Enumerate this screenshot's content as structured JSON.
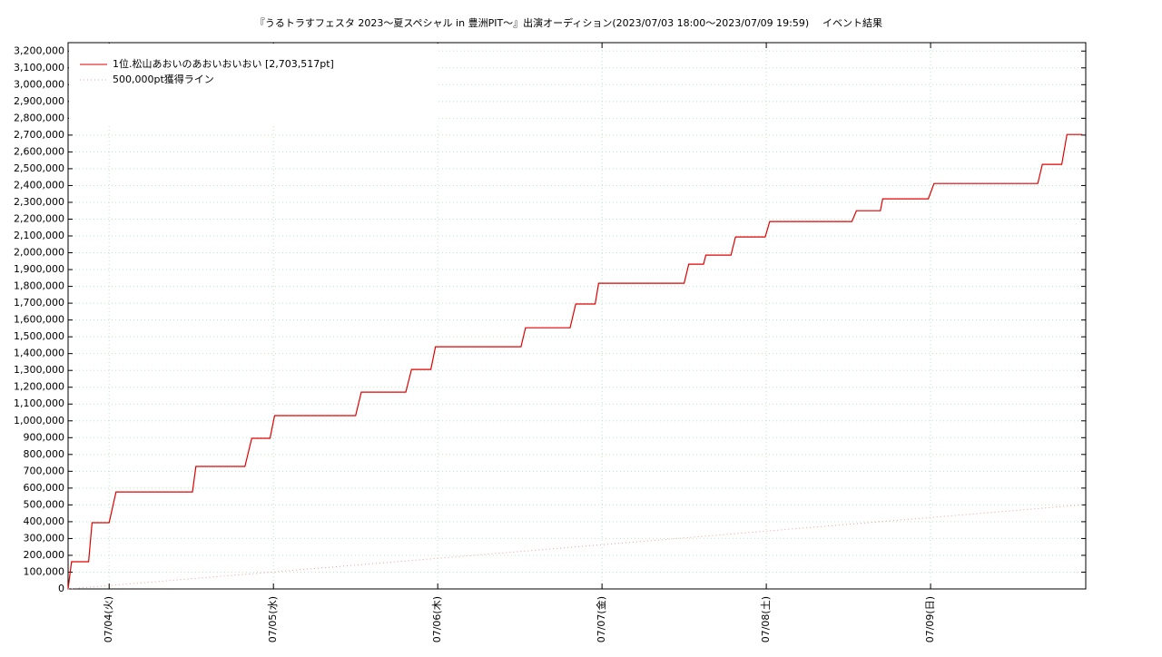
{
  "chart_data": {
    "type": "line",
    "title": "『うるトラすフェスタ 2023〜夏スペシャル in 豊洲PIT〜』出演オーディション(2023/07/03 18:00〜2023/07/09 19:59)",
    "subtitle": "イベント結果",
    "xlim": [
      "07/03 18:00",
      "07/09 22:40"
    ],
    "xticks": [
      {
        "value": "07/04 00:00",
        "label": "07/04(火)"
      },
      {
        "value": "07/05 00:00",
        "label": "07/05(水)"
      },
      {
        "value": "07/06 00:00",
        "label": "07/06(木)"
      },
      {
        "value": "07/07 00:00",
        "label": "07/07(金)"
      },
      {
        "value": "07/08 00:00",
        "label": "07/08(土)"
      },
      {
        "value": "07/09 00:00",
        "label": "07/09(日)"
      }
    ],
    "ylim": [
      0,
      3250000
    ],
    "yticks": [
      0,
      {
        "value": 100000,
        "label": "100,000"
      },
      {
        "value": 200000,
        "label": "200,000"
      },
      {
        "value": 300000,
        "label": "300,000"
      },
      {
        "value": 400000,
        "label": "400,000"
      },
      {
        "value": 500000,
        "label": "500,000"
      },
      {
        "value": 600000,
        "label": "600,000"
      },
      {
        "value": 700000,
        "label": "700,000"
      },
      {
        "value": 800000,
        "label": "800,000"
      },
      {
        "value": 900000,
        "label": "900,000"
      },
      {
        "value": 1000000,
        "label": "1,000,000"
      },
      {
        "value": 1100000,
        "label": "1,100,000"
      },
      {
        "value": 1200000,
        "label": "1,200,000"
      },
      {
        "value": 1300000,
        "label": "1,300,000"
      },
      {
        "value": 1400000,
        "label": "1,400,000"
      },
      {
        "value": 1500000,
        "label": "1,500,000"
      },
      {
        "value": 1600000,
        "label": "1,600,000"
      },
      {
        "value": 1700000,
        "label": "1,700,000"
      },
      {
        "value": 1800000,
        "label": "1,800,000"
      },
      {
        "value": 1900000,
        "label": "1,900,000"
      },
      {
        "value": 2000000,
        "label": "2,000,000"
      },
      {
        "value": 2100000,
        "label": "2,100,000"
      },
      {
        "value": 2200000,
        "label": "2,200,000"
      },
      {
        "value": 2300000,
        "label": "2,300,000"
      },
      {
        "value": 2400000,
        "label": "2,400,000"
      },
      {
        "value": 2500000,
        "label": "2,500,000"
      },
      {
        "value": 2600000,
        "label": "2,600,000"
      },
      {
        "value": 2700000,
        "label": "2,700,000"
      },
      {
        "value": 2800000,
        "label": "2,800,000"
      },
      {
        "value": 2900000,
        "label": "2,900,000"
      },
      {
        "value": 3000000,
        "label": "3,000,000"
      },
      {
        "value": 3100000,
        "label": "3,100,000"
      },
      {
        "value": 3200000,
        "label": "3,200,000"
      }
    ],
    "grid": true,
    "legend": "upper left",
    "series": [
      {
        "name": "1位.松山あおいのあおいおいおい [2,703,517pt]",
        "color": "#e00000",
        "dash": "solid",
        "x": [
          "07/03 18:00",
          "07/03 18:30",
          "07/03 21:00",
          "07/03 21:30",
          "07/04 00:00",
          "07/04 01:00",
          "07/04 12:10",
          "07/04 12:40",
          "07/04 19:50",
          "07/04 20:50",
          "07/04 23:30",
          "07/05 00:10",
          "07/05 12:00",
          "07/05 12:50",
          "07/05 19:20",
          "07/05 20:10",
          "07/05 23:00",
          "07/05 23:40",
          "07/06 12:10",
          "07/06 12:50",
          "07/06 19:20",
          "07/06 20:10",
          "07/06 23:00",
          "07/06 23:30",
          "07/07 12:00",
          "07/07 12:40",
          "07/07 14:50",
          "07/07 15:10",
          "07/07 18:50",
          "07/07 19:30",
          "07/07 23:50",
          "07/08 00:30",
          "07/08 12:30",
          "07/08 13:10",
          "07/08 16:40",
          "07/08 17:00",
          "07/08 23:40",
          "07/09 00:30",
          "07/09 15:40",
          "07/09 16:20",
          "07/09 19:10",
          "07/09 19:55",
          "07/09 22:10"
        ],
        "values": [
          0,
          162000,
          162000,
          394000,
          394000,
          577000,
          577000,
          729000,
          729000,
          896000,
          896000,
          1031000,
          1031000,
          1171000,
          1171000,
          1306000,
          1306000,
          1441000,
          1441000,
          1554000,
          1554000,
          1695000,
          1695000,
          1819000,
          1819000,
          1932000,
          1932000,
          1986000,
          1986000,
          2094000,
          2094000,
          2186000,
          2186000,
          2250000,
          2250000,
          2321000,
          2321000,
          2412000,
          2412000,
          2526000,
          2526000,
          2703517,
          2703517
        ]
      },
      {
        "name": "500,000pt獲得ライン",
        "color": "#e8a0a0",
        "dash": "dotted",
        "x": [
          "07/03 18:00",
          "07/09 22:10"
        ],
        "values": [
          0,
          500000
        ]
      }
    ]
  }
}
